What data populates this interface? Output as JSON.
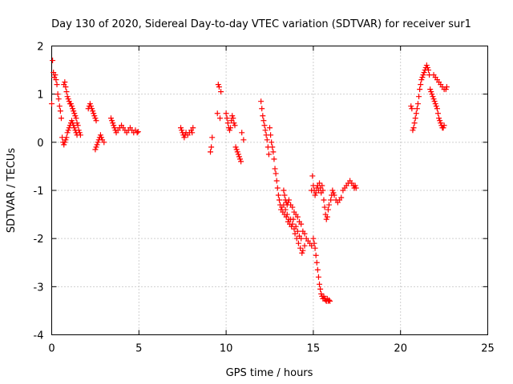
{
  "chart_data": {
    "type": "scatter",
    "title": "Day 130 of 2020, Sidereal Day-to-day VTEC variation (SDTVAR) for receiver sur1",
    "xlabel": "GPS time / hours",
    "ylabel": "SDTVAR / TECUs",
    "xlim": [
      0,
      25
    ],
    "ylim": [
      -4,
      2
    ],
    "xticks": [
      0,
      5,
      10,
      15,
      20,
      25
    ],
    "yticks": [
      -4,
      -3,
      -2,
      -1,
      0,
      1,
      2
    ],
    "grid": true,
    "marker": "+",
    "color": "#ff0000",
    "series": [
      {
        "name": "sur1",
        "points": [
          [
            0.0,
            0.8
          ],
          [
            0.05,
            1.7
          ],
          [
            0.1,
            1.45
          ],
          [
            0.15,
            1.35
          ],
          [
            0.2,
            1.4
          ],
          [
            0.25,
            1.3
          ],
          [
            0.3,
            1.2
          ],
          [
            0.35,
            1.0
          ],
          [
            0.4,
            0.9
          ],
          [
            0.45,
            0.75
          ],
          [
            0.5,
            0.65
          ],
          [
            0.55,
            0.5
          ],
          [
            0.6,
            0.1
          ],
          [
            0.65,
            0.0
          ],
          [
            0.7,
            -0.05
          ],
          [
            0.75,
            0.0
          ],
          [
            0.8,
            0.05
          ],
          [
            0.85,
            0.1
          ],
          [
            0.9,
            0.2
          ],
          [
            0.95,
            0.25
          ],
          [
            1.0,
            0.3
          ],
          [
            1.05,
            0.35
          ],
          [
            1.1,
            0.4
          ],
          [
            1.15,
            0.45
          ],
          [
            1.2,
            0.4
          ],
          [
            1.25,
            0.35
          ],
          [
            1.3,
            0.3
          ],
          [
            1.35,
            0.25
          ],
          [
            1.4,
            0.2
          ],
          [
            1.45,
            0.15
          ],
          [
            0.7,
            1.2
          ],
          [
            0.75,
            1.25
          ],
          [
            0.8,
            1.15
          ],
          [
            0.85,
            1.05
          ],
          [
            0.9,
            0.95
          ],
          [
            0.95,
            0.9
          ],
          [
            1.0,
            0.85
          ],
          [
            1.05,
            0.8
          ],
          [
            1.1,
            0.8
          ],
          [
            1.15,
            0.75
          ],
          [
            1.2,
            0.7
          ],
          [
            1.25,
            0.65
          ],
          [
            1.3,
            0.6
          ],
          [
            1.35,
            0.55
          ],
          [
            1.4,
            0.5
          ],
          [
            1.45,
            0.4
          ],
          [
            1.5,
            0.35
          ],
          [
            1.55,
            0.25
          ],
          [
            1.6,
            0.2
          ],
          [
            1.65,
            0.15
          ],
          [
            2.1,
            0.7
          ],
          [
            2.15,
            0.75
          ],
          [
            2.2,
            0.8
          ],
          [
            2.25,
            0.75
          ],
          [
            2.3,
            0.7
          ],
          [
            2.35,
            0.65
          ],
          [
            2.4,
            0.6
          ],
          [
            2.45,
            0.55
          ],
          [
            2.5,
            0.5
          ],
          [
            2.55,
            0.45
          ],
          [
            2.5,
            -0.15
          ],
          [
            2.55,
            -0.1
          ],
          [
            2.6,
            -0.05
          ],
          [
            2.65,
            0.0
          ],
          [
            2.7,
            0.05
          ],
          [
            2.75,
            0.1
          ],
          [
            2.8,
            0.15
          ],
          [
            2.85,
            0.1
          ],
          [
            2.9,
            0.05
          ],
          [
            3.0,
            0.0
          ],
          [
            3.4,
            0.5
          ],
          [
            3.45,
            0.45
          ],
          [
            3.5,
            0.4
          ],
          [
            3.55,
            0.35
          ],
          [
            3.6,
            0.3
          ],
          [
            3.65,
            0.25
          ],
          [
            3.7,
            0.2
          ],
          [
            3.8,
            0.25
          ],
          [
            3.9,
            0.3
          ],
          [
            4.0,
            0.35
          ],
          [
            4.1,
            0.3
          ],
          [
            4.2,
            0.25
          ],
          [
            4.3,
            0.2
          ],
          [
            4.4,
            0.25
          ],
          [
            4.5,
            0.3
          ],
          [
            4.6,
            0.25
          ],
          [
            4.7,
            0.2
          ],
          [
            4.8,
            0.25
          ],
          [
            4.9,
            0.2
          ],
          [
            4.95,
            0.22
          ],
          [
            7.4,
            0.3
          ],
          [
            7.45,
            0.25
          ],
          [
            7.5,
            0.2
          ],
          [
            7.55,
            0.15
          ],
          [
            7.6,
            0.1
          ],
          [
            7.65,
            0.15
          ],
          [
            7.7,
            0.2
          ],
          [
            7.8,
            0.15
          ],
          [
            7.9,
            0.2
          ],
          [
            8.0,
            0.25
          ],
          [
            8.05,
            0.2
          ],
          [
            8.1,
            0.3
          ],
          [
            9.1,
            -0.2
          ],
          [
            9.15,
            -0.1
          ],
          [
            9.2,
            0.1
          ],
          [
            9.5,
            0.6
          ],
          [
            9.55,
            1.2
          ],
          [
            9.6,
            1.15
          ],
          [
            9.65,
            0.5
          ],
          [
            9.7,
            1.05
          ],
          [
            10.0,
            0.6
          ],
          [
            10.05,
            0.5
          ],
          [
            10.1,
            0.4
          ],
          [
            10.15,
            0.3
          ],
          [
            10.2,
            0.25
          ],
          [
            10.25,
            0.3
          ],
          [
            10.3,
            0.45
          ],
          [
            10.35,
            0.55
          ],
          [
            10.4,
            0.5
          ],
          [
            10.45,
            0.4
          ],
          [
            10.5,
            0.35
          ],
          [
            10.55,
            -0.1
          ],
          [
            10.6,
            -0.15
          ],
          [
            10.65,
            -0.2
          ],
          [
            10.7,
            -0.25
          ],
          [
            10.75,
            -0.3
          ],
          [
            10.8,
            -0.35
          ],
          [
            10.85,
            -0.4
          ],
          [
            10.9,
            0.2
          ],
          [
            11.0,
            0.05
          ],
          [
            12.0,
            0.85
          ],
          [
            12.05,
            0.7
          ],
          [
            12.1,
            0.55
          ],
          [
            12.15,
            0.45
          ],
          [
            12.2,
            0.35
          ],
          [
            12.25,
            0.25
          ],
          [
            12.3,
            0.15
          ],
          [
            12.35,
            0.05
          ],
          [
            12.4,
            -0.1
          ],
          [
            12.45,
            -0.25
          ],
          [
            12.5,
            0.3
          ],
          [
            12.55,
            0.15
          ],
          [
            12.6,
            0.0
          ],
          [
            12.65,
            -0.1
          ],
          [
            12.7,
            -0.2
          ],
          [
            12.75,
            -0.35
          ],
          [
            12.8,
            -0.55
          ],
          [
            12.85,
            -0.65
          ],
          [
            12.9,
            -0.8
          ],
          [
            12.95,
            -0.95
          ],
          [
            13.0,
            -1.1
          ],
          [
            13.05,
            -1.2
          ],
          [
            13.1,
            -1.3
          ],
          [
            13.15,
            -1.4
          ],
          [
            13.2,
            -1.35
          ],
          [
            13.25,
            -1.45
          ],
          [
            13.3,
            -1.3
          ],
          [
            13.35,
            -1.5
          ],
          [
            13.4,
            -1.4
          ],
          [
            13.45,
            -1.55
          ],
          [
            13.5,
            -1.5
          ],
          [
            13.55,
            -1.65
          ],
          [
            13.6,
            -1.6
          ],
          [
            13.65,
            -1.7
          ],
          [
            13.7,
            -1.6
          ],
          [
            13.75,
            -1.75
          ],
          [
            13.8,
            -1.7
          ],
          [
            13.85,
            -1.6
          ],
          [
            13.9,
            -1.8
          ],
          [
            13.95,
            -1.9
          ],
          [
            14.0,
            -1.75
          ],
          [
            14.05,
            -2.0
          ],
          [
            14.1,
            -1.85
          ],
          [
            14.15,
            -2.1
          ],
          [
            14.2,
            -1.95
          ],
          [
            14.25,
            -2.2
          ],
          [
            14.3,
            -2.0
          ],
          [
            14.35,
            -2.3
          ],
          [
            14.4,
            -2.25
          ],
          [
            14.5,
            -2.15
          ],
          [
            13.3,
            -1.0
          ],
          [
            13.35,
            -1.1
          ],
          [
            13.4,
            -1.2
          ],
          [
            13.45,
            -1.25
          ],
          [
            13.5,
            -1.3
          ],
          [
            13.55,
            -1.25
          ],
          [
            13.6,
            -1.2
          ],
          [
            13.7,
            -1.3
          ],
          [
            13.8,
            -1.35
          ],
          [
            13.9,
            -1.45
          ],
          [
            14.0,
            -1.5
          ],
          [
            14.1,
            -1.55
          ],
          [
            14.2,
            -1.65
          ],
          [
            14.3,
            -1.7
          ],
          [
            14.4,
            -1.85
          ],
          [
            14.5,
            -1.9
          ],
          [
            14.6,
            -2.0
          ],
          [
            14.7,
            -2.05
          ],
          [
            14.8,
            -2.1
          ],
          [
            14.9,
            -2.15
          ],
          [
            14.9,
            -1.0
          ],
          [
            14.95,
            -0.7
          ],
          [
            15.0,
            -0.9
          ],
          [
            15.05,
            -1.0
          ],
          [
            15.1,
            -1.1
          ],
          [
            15.15,
            -1.05
          ],
          [
            15.2,
            -0.95
          ],
          [
            15.25,
            -0.9
          ],
          [
            15.3,
            -1.0
          ],
          [
            15.35,
            -0.85
          ],
          [
            15.4,
            -0.95
          ],
          [
            15.45,
            -1.05
          ],
          [
            15.5,
            -0.9
          ],
          [
            15.55,
            -1.0
          ],
          [
            15.6,
            -1.2
          ],
          [
            15.65,
            -1.35
          ],
          [
            15.7,
            -1.5
          ],
          [
            15.75,
            -1.6
          ],
          [
            15.8,
            -1.55
          ],
          [
            15.85,
            -1.4
          ],
          [
            15.0,
            -2.0
          ],
          [
            15.05,
            -2.1
          ],
          [
            15.1,
            -2.2
          ],
          [
            15.15,
            -2.35
          ],
          [
            15.2,
            -2.5
          ],
          [
            15.25,
            -2.65
          ],
          [
            15.3,
            -2.8
          ],
          [
            15.35,
            -2.95
          ],
          [
            15.4,
            -3.05
          ],
          [
            15.45,
            -3.15
          ],
          [
            15.5,
            -3.2
          ],
          [
            15.55,
            -3.25
          ],
          [
            15.6,
            -3.2
          ],
          [
            15.65,
            -3.25
          ],
          [
            15.7,
            -3.28
          ],
          [
            15.75,
            -3.3
          ],
          [
            15.8,
            -3.25
          ],
          [
            15.85,
            -3.3
          ],
          [
            15.9,
            -3.28
          ],
          [
            15.95,
            -3.3
          ],
          [
            15.9,
            -1.3
          ],
          [
            16.0,
            -1.2
          ],
          [
            16.05,
            -1.1
          ],
          [
            16.1,
            -1.0
          ],
          [
            16.15,
            -1.05
          ],
          [
            16.2,
            -1.1
          ],
          [
            16.3,
            -1.2
          ],
          [
            16.4,
            -1.25
          ],
          [
            16.5,
            -1.2
          ],
          [
            16.6,
            -1.15
          ],
          [
            16.7,
            -1.0
          ],
          [
            16.8,
            -0.95
          ],
          [
            16.9,
            -0.9
          ],
          [
            17.0,
            -0.85
          ],
          [
            17.1,
            -0.8
          ],
          [
            17.2,
            -0.85
          ],
          [
            17.3,
            -0.9
          ],
          [
            17.35,
            -0.95
          ],
          [
            17.4,
            -0.9
          ],
          [
            17.45,
            -0.95
          ],
          [
            20.7,
            0.25
          ],
          [
            20.75,
            0.3
          ],
          [
            20.8,
            0.4
          ],
          [
            20.85,
            0.5
          ],
          [
            20.9,
            0.6
          ],
          [
            20.95,
            0.7
          ],
          [
            21.0,
            0.8
          ],
          [
            21.05,
            0.95
          ],
          [
            21.1,
            1.1
          ],
          [
            21.15,
            1.2
          ],
          [
            21.2,
            1.3
          ],
          [
            21.25,
            1.35
          ],
          [
            21.3,
            1.4
          ],
          [
            21.35,
            1.45
          ],
          [
            21.4,
            1.5
          ],
          [
            21.45,
            1.55
          ],
          [
            21.5,
            1.6
          ],
          [
            21.55,
            1.55
          ],
          [
            21.6,
            1.5
          ],
          [
            21.65,
            1.4
          ],
          [
            21.7,
            1.1
          ],
          [
            21.75,
            1.05
          ],
          [
            21.8,
            1.0
          ],
          [
            21.85,
            0.95
          ],
          [
            21.9,
            0.9
          ],
          [
            21.95,
            0.85
          ],
          [
            22.0,
            0.8
          ],
          [
            22.05,
            0.75
          ],
          [
            22.1,
            0.7
          ],
          [
            22.15,
            0.6
          ],
          [
            22.2,
            0.5
          ],
          [
            22.25,
            0.45
          ],
          [
            22.3,
            0.4
          ],
          [
            22.35,
            0.35
          ],
          [
            22.4,
            0.3
          ],
          [
            22.45,
            0.3
          ],
          [
            22.5,
            0.35
          ],
          [
            21.9,
            1.4
          ],
          [
            22.0,
            1.35
          ],
          [
            22.1,
            1.3
          ],
          [
            22.2,
            1.25
          ],
          [
            22.3,
            1.2
          ],
          [
            22.4,
            1.15
          ],
          [
            22.5,
            1.1
          ],
          [
            22.6,
            1.1
          ],
          [
            22.65,
            1.15
          ],
          [
            20.6,
            0.75
          ],
          [
            20.65,
            0.7
          ]
        ]
      }
    ]
  }
}
